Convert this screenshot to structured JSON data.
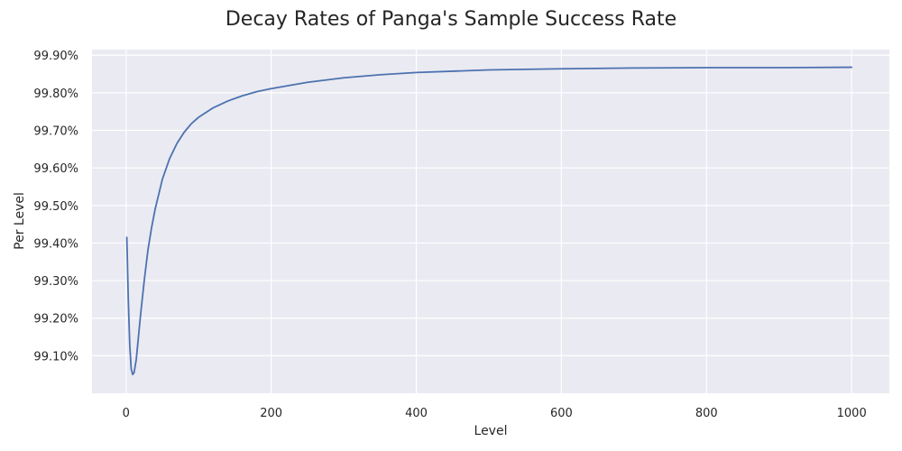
{
  "chart_data": {
    "type": "line",
    "title": "Decay Rates of Panga's Sample Success Rate",
    "xlabel": "Level",
    "ylabel": "Per Level",
    "xlim": [
      -47,
      1052
    ],
    "ylim": [
      99.0,
      99.915
    ],
    "x_ticks": [
      0,
      200,
      400,
      600,
      800,
      1000
    ],
    "x_tick_labels": [
      "0",
      "200",
      "400",
      "600",
      "800",
      "1000"
    ],
    "y_ticks": [
      99.1,
      99.2,
      99.3,
      99.4,
      99.5,
      99.6,
      99.7,
      99.8,
      99.9
    ],
    "y_tick_labels": [
      "99.10%",
      "99.20%",
      "99.30%",
      "99.40%",
      "99.50%",
      "99.60%",
      "99.70%",
      "99.80%",
      "99.90%"
    ],
    "grid": true,
    "colors": {
      "plot_background": "#eaeaf2",
      "grid": "#ffffff",
      "line": "#4c72b0"
    },
    "series": [
      {
        "color": "#4c72b0",
        "x": [
          1,
          3,
          5,
          7,
          9,
          11,
          14,
          17,
          20,
          25,
          30,
          35,
          40,
          50,
          60,
          70,
          80,
          90,
          100,
          120,
          140,
          160,
          180,
          200,
          250,
          300,
          350,
          400,
          500,
          600,
          700,
          800,
          900,
          1000
        ],
        "y": [
          99.415,
          99.25,
          99.13,
          99.065,
          99.05,
          99.055,
          99.09,
          99.15,
          99.21,
          99.3,
          99.38,
          99.44,
          99.49,
          99.57,
          99.625,
          99.665,
          99.695,
          99.718,
          99.735,
          99.76,
          99.778,
          99.792,
          99.803,
          99.811,
          99.828,
          99.84,
          99.848,
          99.854,
          99.861,
          99.864,
          99.866,
          99.867,
          99.867,
          99.868
        ]
      }
    ]
  }
}
